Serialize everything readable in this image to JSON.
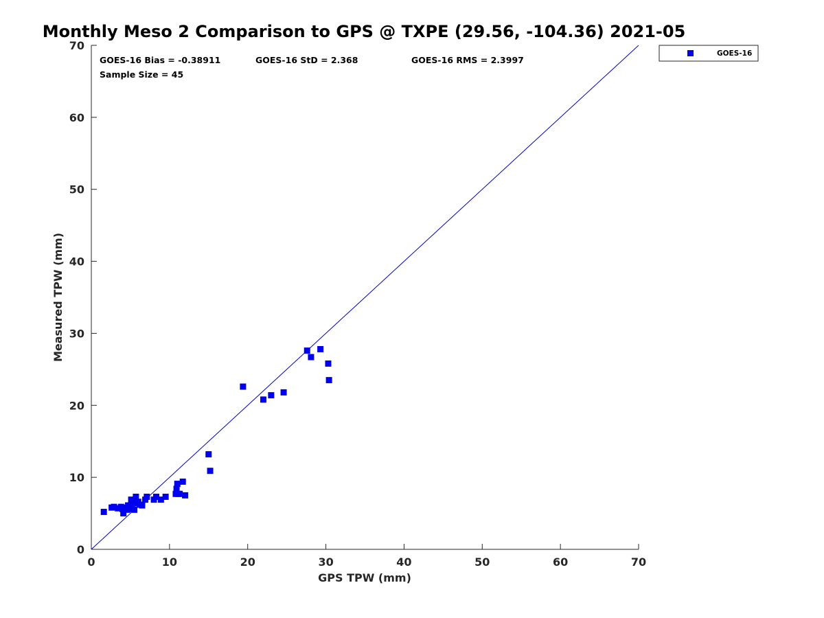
{
  "chart_data": {
    "type": "scatter",
    "title": "Monthly Meso 2 Comparison to GPS @ TXPE (29.56, -104.36) 2021-05",
    "xlabel": "GPS TPW (mm)",
    "ylabel": "Measured TPW (mm)",
    "xlim": [
      0,
      70
    ],
    "ylim": [
      0,
      70
    ],
    "xticks": [
      0,
      10,
      20,
      30,
      40,
      50,
      60,
      70
    ],
    "yticks": [
      0,
      10,
      20,
      30,
      40,
      50,
      60,
      70
    ],
    "grid": false,
    "legend_position": "top-right outside",
    "colors": {
      "series": "#0000ee",
      "reference_line": "#0000cc",
      "axis": "#262626"
    },
    "stats": {
      "bias": "GOES-16 Bias = -0.38911",
      "std": "GOES-16 StD = 2.368",
      "rms": "GOES-16 RMS = 2.3997",
      "sample_size": "Sample Size = 45"
    },
    "reference_line": {
      "x": [
        0,
        70
      ],
      "y": [
        0,
        70
      ]
    },
    "series": [
      {
        "name": "GOES-16",
        "marker": "square",
        "x": [
          1.6,
          2.6,
          2.9,
          3.4,
          3.8,
          4.0,
          4.1,
          4.3,
          4.6,
          4.7,
          4.9,
          5.0,
          5.1,
          5.2,
          5.4,
          5.5,
          5.7,
          5.8,
          6.0,
          6.2,
          6.5,
          6.9,
          7.1,
          8.0,
          8.3,
          8.9,
          9.5,
          10.8,
          10.9,
          11.0,
          11.1,
          11.3,
          11.7,
          12.0,
          15.0,
          15.2,
          19.4,
          22.0,
          23.0,
          24.6,
          27.6,
          28.1,
          29.3,
          30.3,
          30.4
        ],
        "y": [
          5.2,
          5.8,
          5.9,
          5.7,
          5.9,
          5.6,
          5.0,
          5.8,
          5.5,
          6.1,
          5.8,
          6.1,
          6.9,
          5.6,
          6.6,
          5.5,
          7.3,
          6.4,
          6.6,
          6.2,
          6.1,
          6.9,
          7.3,
          6.9,
          7.3,
          6.9,
          7.3,
          7.7,
          8.4,
          9.1,
          7.7,
          7.7,
          9.4,
          7.5,
          13.2,
          10.9,
          22.6,
          20.8,
          21.4,
          21.8,
          27.6,
          26.7,
          27.8,
          25.8,
          23.5
        ]
      }
    ]
  }
}
